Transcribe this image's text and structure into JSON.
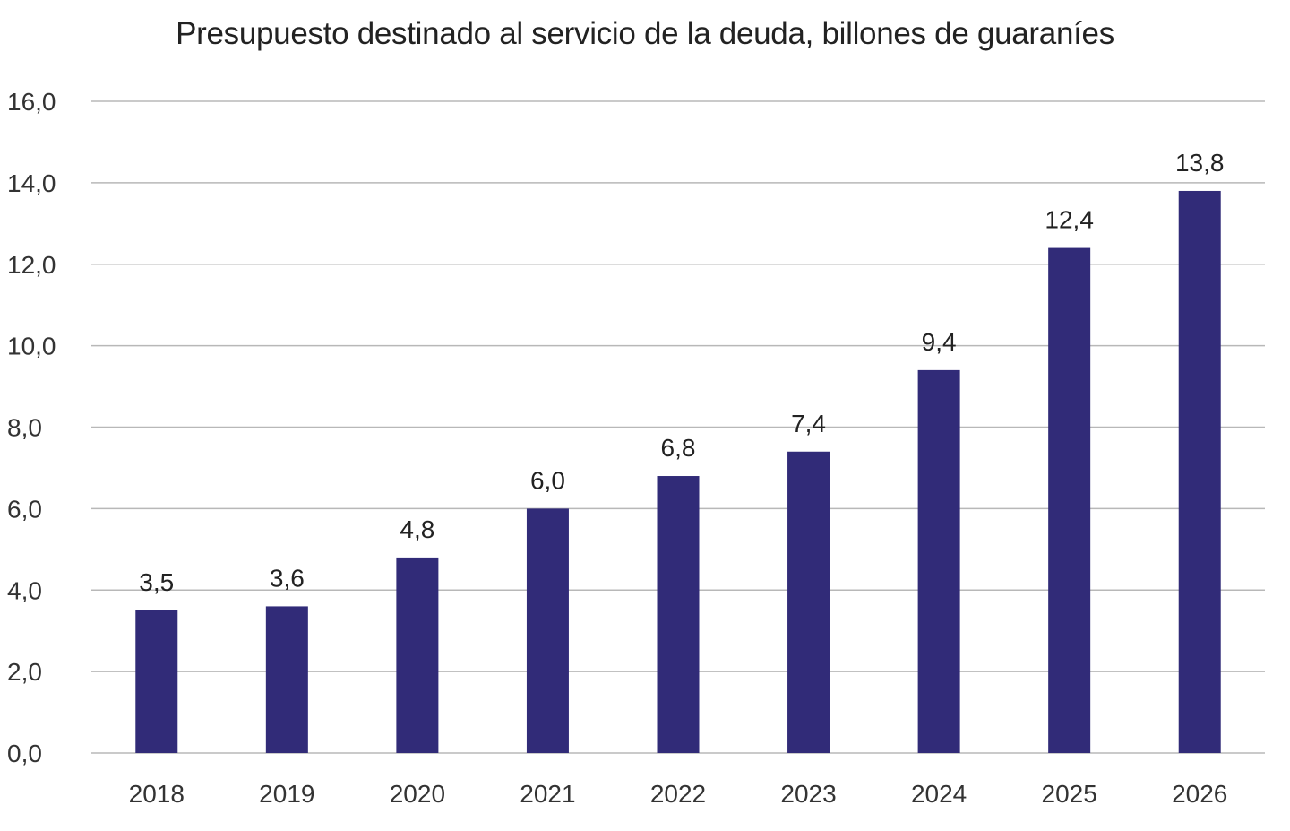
{
  "chart_data": {
    "type": "bar",
    "title": "Presupuesto destinado al servicio de la deuda, billones de guaraníes",
    "xlabel": "",
    "ylabel": "",
    "categories": [
      "2018",
      "2019",
      "2020",
      "2021",
      "2022",
      "2023",
      "2024",
      "2025",
      "2026"
    ],
    "values": [
      3.5,
      3.6,
      4.8,
      6.0,
      6.8,
      7.4,
      9.4,
      12.4,
      13.8
    ],
    "data_labels": [
      "3,5",
      "3,6",
      "4,8",
      "6,0",
      "6,8",
      "7,4",
      "9,4",
      "12,4",
      "13,8"
    ],
    "ylim": [
      0,
      16
    ],
    "yticks": [
      0,
      2,
      4,
      6,
      8,
      10,
      12,
      14,
      16
    ],
    "ytick_labels": [
      "0,0",
      "2,0",
      "4,0",
      "6,0",
      "8,0",
      "10,0",
      "12,0",
      "14,0",
      "16,0"
    ],
    "grid": true,
    "legend": "none",
    "bar_color": "#312b78",
    "grid_color": "#b8b8b8"
  }
}
